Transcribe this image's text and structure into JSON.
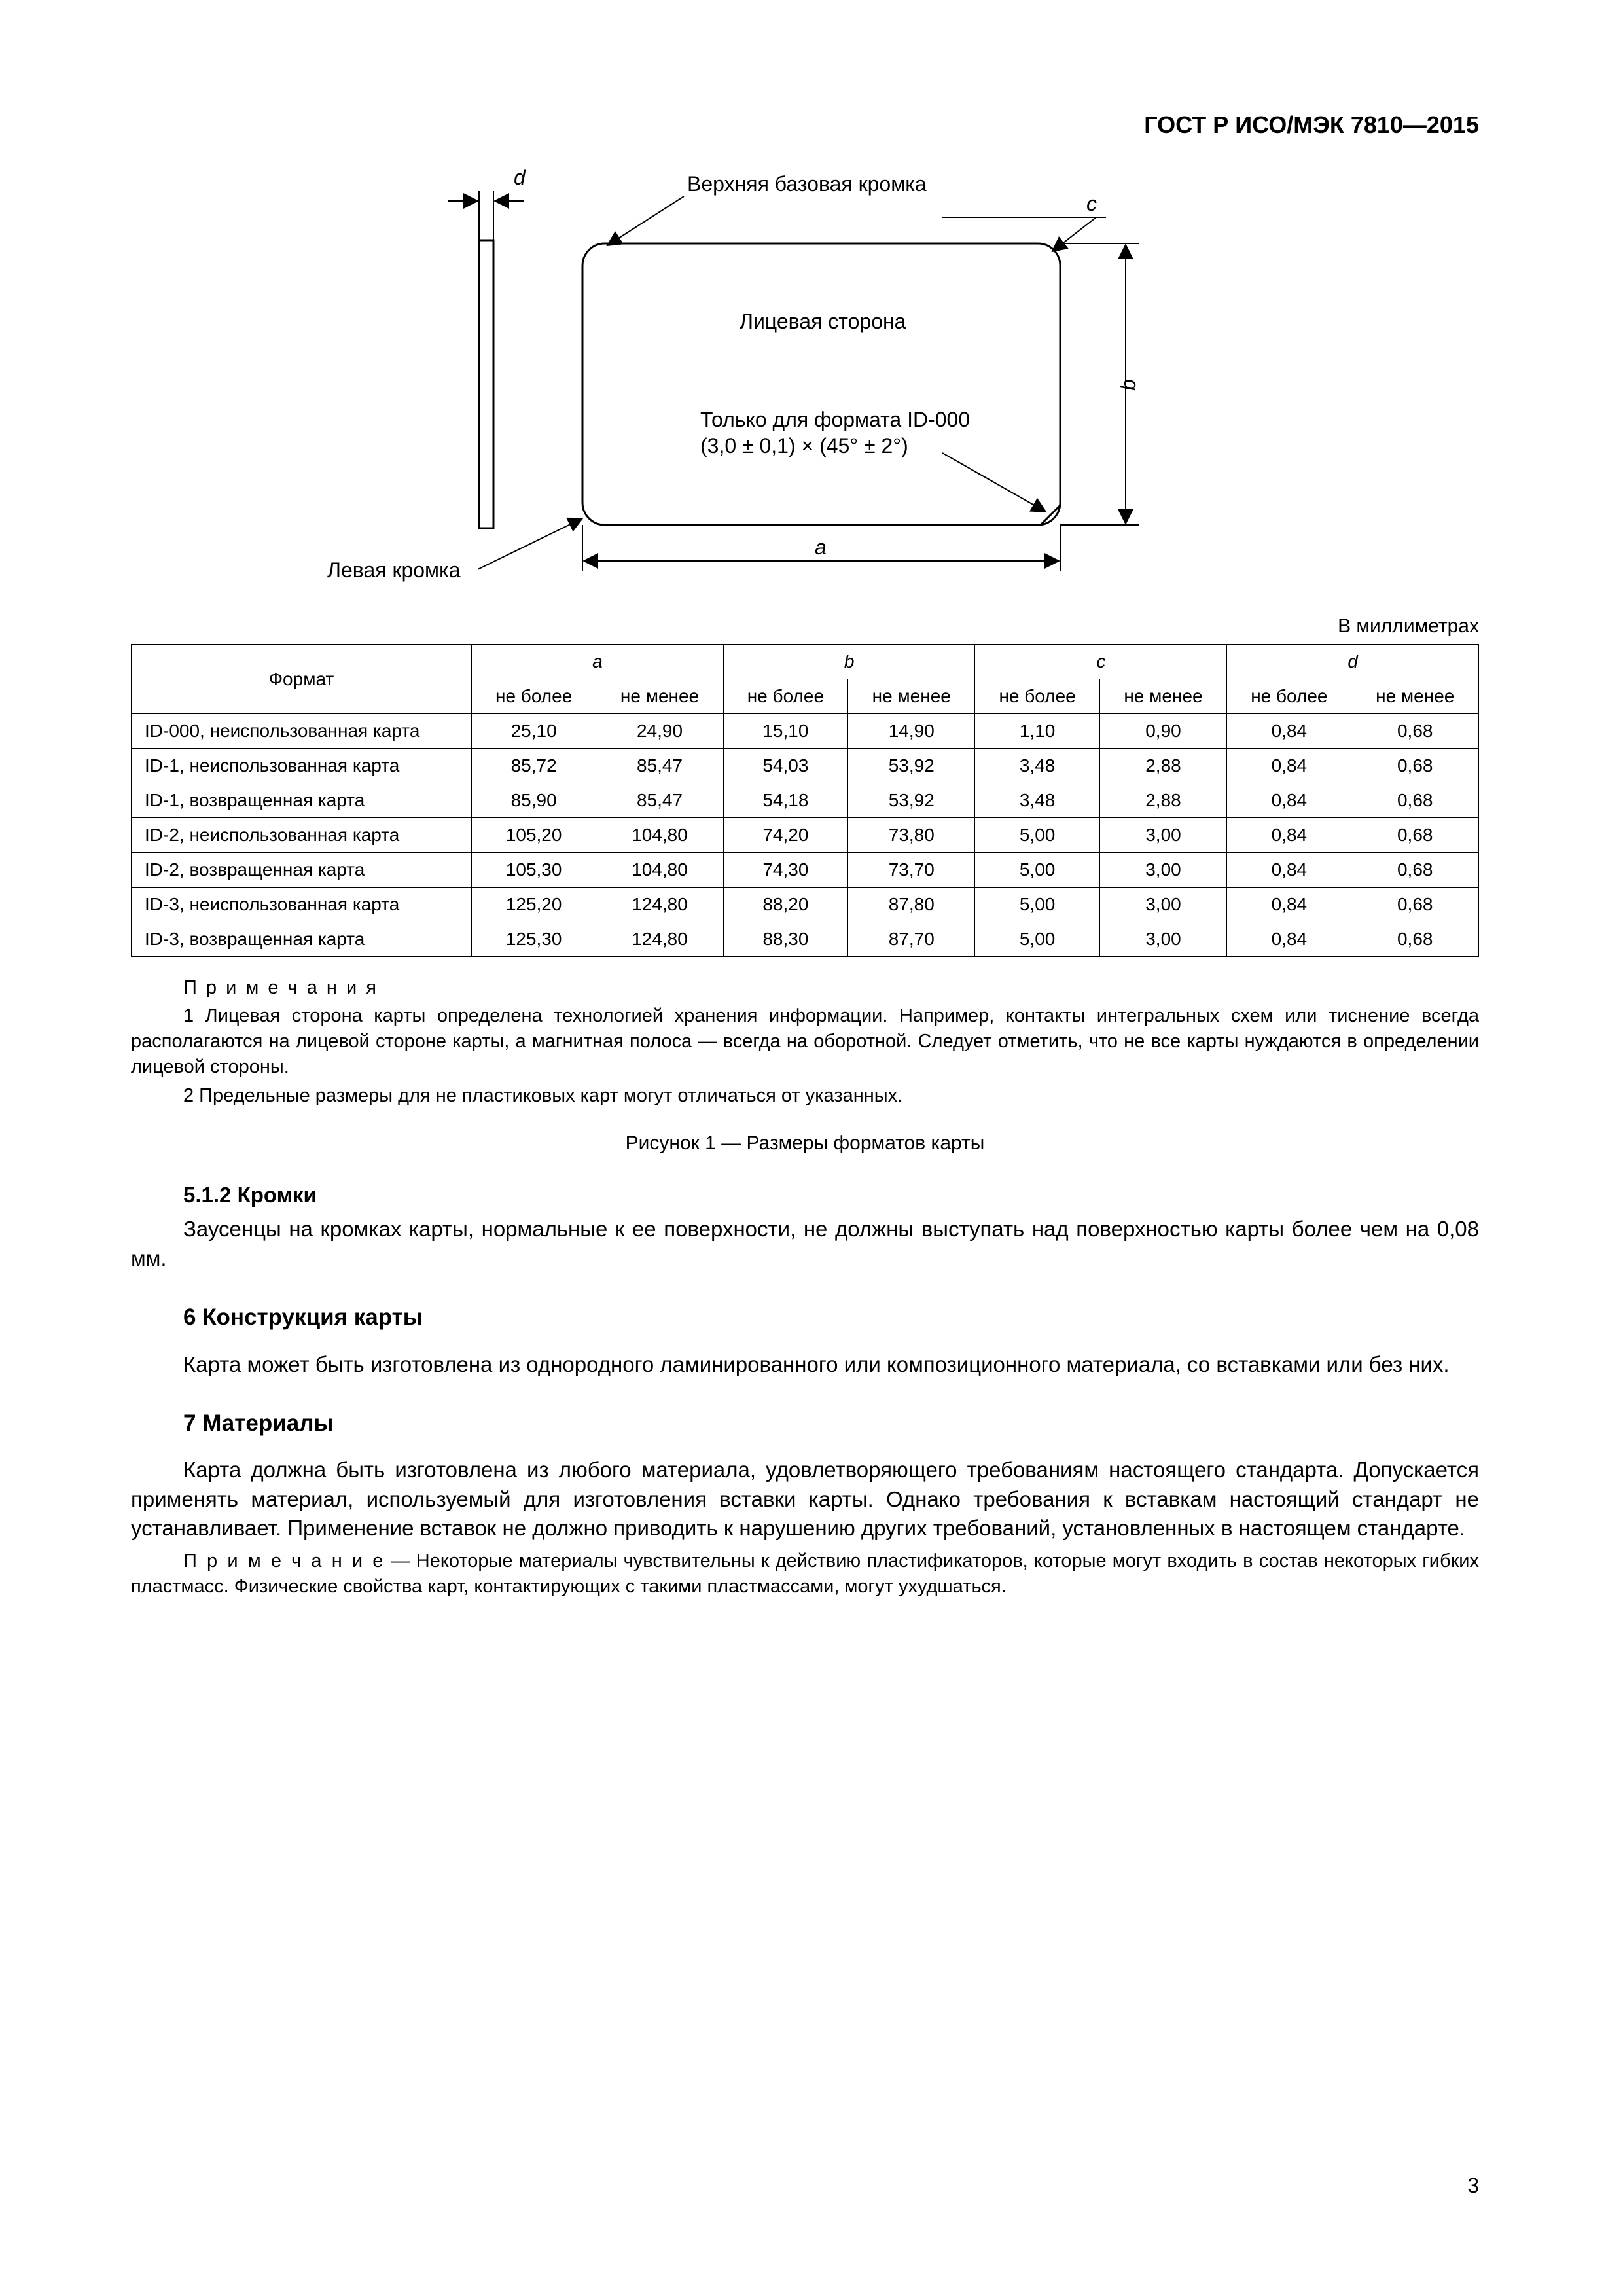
{
  "header": {
    "code": "ГОСТ Р ИСО/МЭК 7810—2015"
  },
  "figure": {
    "stroke": "#000000",
    "text_color": "#000000",
    "font_size": 30,
    "label_top": "Верхняя базовая кромка",
    "label_left": "Левая кромка",
    "label_face": "Лицевая сторона",
    "label_id000_l1": "Только для формата ID-000",
    "label_id000_l2": "(3,0 ± 0,1) × (45° ± 2°)",
    "dim_a": "a",
    "dim_b": "b",
    "dim_c": "c",
    "dim_d": "d"
  },
  "units_label": "В миллиметрах",
  "table": {
    "header_format": "Формат",
    "groups": [
      "a",
      "b",
      "c",
      "d"
    ],
    "sub_max": "не более",
    "sub_min": "не менее",
    "rows": [
      {
        "fmt": "ID-000, неиспользованная карта",
        "vals": [
          "25,10",
          "24,90",
          "15,10",
          "14,90",
          "1,10",
          "0,90",
          "0,84",
          "0,68"
        ]
      },
      {
        "fmt": "ID-1, неиспользованная карта",
        "vals": [
          "85,72",
          "85,47",
          "54,03",
          "53,92",
          "3,48",
          "2,88",
          "0,84",
          "0,68"
        ]
      },
      {
        "fmt": "ID-1, возвращенная карта",
        "vals": [
          "85,90",
          "85,47",
          "54,18",
          "53,92",
          "3,48",
          "2,88",
          "0,84",
          "0,68"
        ]
      },
      {
        "fmt": "ID-2, неиспользованная карта",
        "vals": [
          "105,20",
          "104,80",
          "74,20",
          "73,80",
          "5,00",
          "3,00",
          "0,84",
          "0,68"
        ]
      },
      {
        "fmt": "ID-2, возвращенная карта",
        "vals": [
          "105,30",
          "104,80",
          "74,30",
          "73,70",
          "5,00",
          "3,00",
          "0,84",
          "0,68"
        ]
      },
      {
        "fmt": "ID-3, неиспользованная карта",
        "vals": [
          "125,20",
          "124,80",
          "88,20",
          "87,80",
          "5,00",
          "3,00",
          "0,84",
          "0,68"
        ]
      },
      {
        "fmt": "ID-3, возвращенная карта",
        "vals": [
          "125,30",
          "124,80",
          "88,30",
          "87,70",
          "5,00",
          "3,00",
          "0,84",
          "0,68"
        ]
      }
    ]
  },
  "notes_title": "П р и м е ч а н и я",
  "note1": "1 Лицевая сторона карты определена технологией хранения информации. Например, контакты интегральных схем или тиснение всегда располагаются на лицевой стороне карты, а магнитная полоса — всегда на оборотной. Следует отметить, что не все карты нуждаются в определении лицевой стороны.",
  "note2": "2 Предельные размеры для не пластиковых карт могут отличаться от указанных.",
  "figure_caption": "Рисунок 1 — Размеры форматов карты",
  "sec512_num": "5.1.2",
  "sec512_title": "Кромки",
  "sec512_body": "Заусенцы на кромках карты, нормальные к ее поверхности, не должны выступать над поверхностью карты более чем на 0,08 мм.",
  "sec6_title": "6  Конструкция карты",
  "sec6_body": "Карта может быть изготовлена из однородного ламинированного или композиционного материала, со вставками или без них.",
  "sec7_title": "7  Материалы",
  "sec7_body": "Карта должна быть изготовлена из любого материала, удовлетворяющего требованиям настоящего стандарта. Допускается применять материал, используемый для изготовления вставки карты. Однако требования к вставкам настоящий стандарт не устанавливает. Применение вставок не должно приводить к нарушению других требований, установленных в настоящем стандарте.",
  "sec7_note_lead": "П р и м е ч а н и е",
  "sec7_note_body": " — Некоторые материалы чувствительны к действию пластификаторов, которые могут входить в состав некоторых гибких пластмасс. Физические свойства карт, контактирующих с такими пластмассами, могут ухудшаться.",
  "page_number": "3"
}
